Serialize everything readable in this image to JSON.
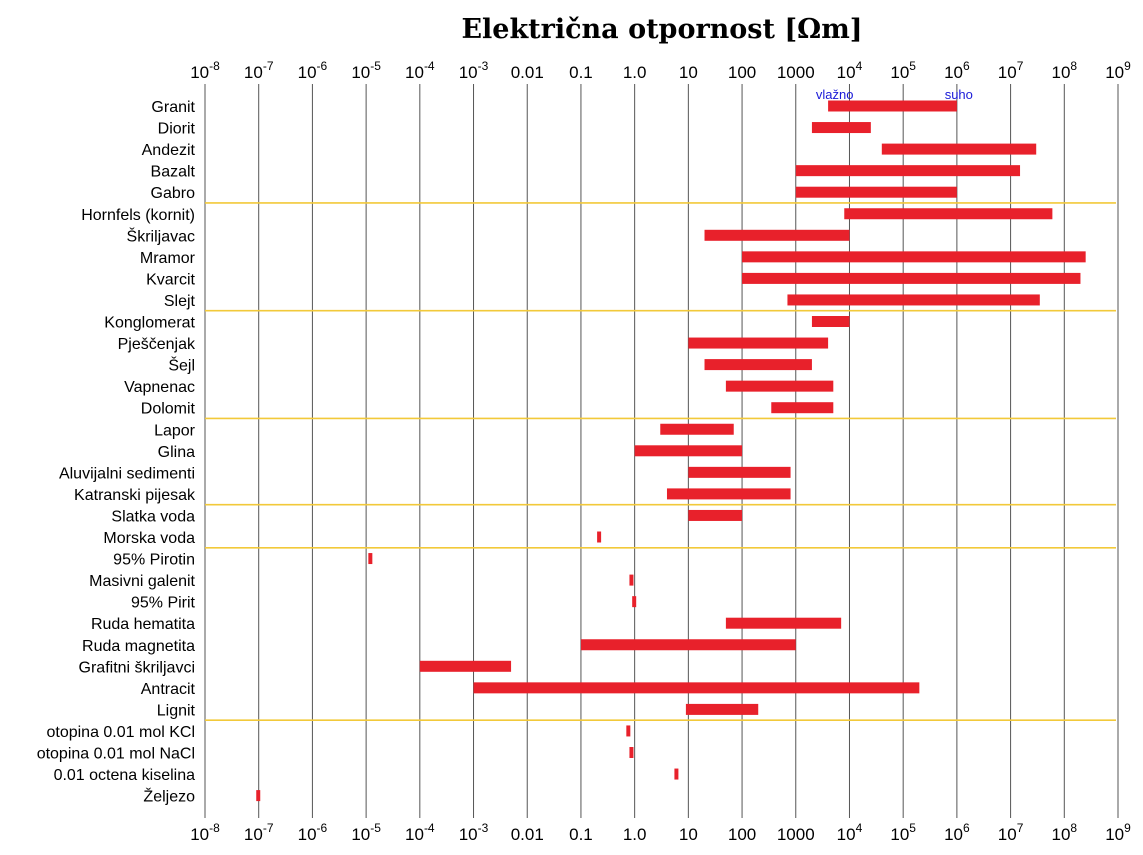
{
  "chart_data": {
    "type": "bar",
    "orientation": "horizontal-range",
    "title": "Električna otpornost [Ωm]",
    "x_scale": "log",
    "xlim": [
      1e-08,
      1000000000.0
    ],
    "x_ticks": [
      {
        "value": 1e-08,
        "base": "10",
        "exp": "-8"
      },
      {
        "value": 1e-07,
        "base": "10",
        "exp": "-7"
      },
      {
        "value": 1e-06,
        "base": "10",
        "exp": "-6"
      },
      {
        "value": 1e-05,
        "base": "10",
        "exp": "-5"
      },
      {
        "value": 0.0001,
        "base": "10",
        "exp": "-4"
      },
      {
        "value": 0.001,
        "base": "10",
        "exp": "-3"
      },
      {
        "value": 0.01,
        "base": "0.01",
        "exp": ""
      },
      {
        "value": 0.1,
        "base": "0.1",
        "exp": ""
      },
      {
        "value": 1,
        "base": "1.0",
        "exp": ""
      },
      {
        "value": 10,
        "base": "10",
        "exp": ""
      },
      {
        "value": 100,
        "base": "100",
        "exp": ""
      },
      {
        "value": 1000,
        "base": "1000",
        "exp": ""
      },
      {
        "value": 10000.0,
        "base": "10",
        "exp": "4"
      },
      {
        "value": 100000.0,
        "base": "10",
        "exp": "5"
      },
      {
        "value": 1000000.0,
        "base": "10",
        "exp": "6"
      },
      {
        "value": 10000000.0,
        "base": "10",
        "exp": "7"
      },
      {
        "value": 100000000.0,
        "base": "10",
        "exp": "8"
      },
      {
        "value": 1000000000.0,
        "base": "10",
        "exp": "9"
      }
    ],
    "grid": "vertical",
    "bar_color": "#e8212b",
    "separator_color": "#f2c93a",
    "note_color": "#1a1ad8",
    "notes": [
      {
        "text": "vlažno",
        "value": 2000,
        "row": 0
      },
      {
        "text": "suho",
        "value": 500000,
        "row": 0
      }
    ],
    "categories": [
      "Granit",
      "Diorit",
      "Andezit",
      "Bazalt",
      "Gabro",
      "Hornfels (kornit)",
      "Škriljavac",
      "Mramor",
      "Kvarcit",
      "Slejt",
      "Konglomerat",
      "Pješčenjak",
      "Šejl",
      "Vapnenac",
      "Dolomit",
      "Lapor",
      "Glina",
      "Aluvijalni sedimenti",
      "Katranski pijesak",
      "Slatka voda",
      "Morska voda",
      "95% Pirotin",
      "Masivni galenit",
      "95% Pirit",
      "Ruda hematita",
      "Ruda magnetita",
      "Grafitni škriljavci",
      "Antracit",
      "Lignit",
      "otopina 0.01 mol KCl",
      "otopina 0.01 mol NaCl",
      "0.01 octena kiselina",
      "Željezo"
    ],
    "separators_after": [
      4,
      9,
      14,
      18,
      20,
      28
    ],
    "ranges": [
      [
        4000,
        1000000
      ],
      [
        2000,
        25000
      ],
      [
        40000,
        30000000
      ],
      [
        1000,
        15000000
      ],
      [
        1000,
        1000000
      ],
      [
        8000,
        60000000
      ],
      [
        20,
        10000
      ],
      [
        100,
        250000000
      ],
      [
        100,
        200000000
      ],
      [
        700,
        35000000
      ],
      [
        2000,
        10000
      ],
      [
        10,
        4000
      ],
      [
        20,
        2000
      ],
      [
        50,
        5000
      ],
      [
        350,
        5000
      ],
      [
        3,
        70
      ],
      [
        1,
        100
      ],
      [
        10,
        800
      ],
      [
        4,
        800
      ],
      [
        10,
        100
      ],
      [
        0.2,
        0.21
      ],
      [
        1.1e-05,
        1.2e-05
      ],
      [
        0.8,
        0.85
      ],
      [
        0.9,
        0.95
      ],
      [
        50,
        7000
      ],
      [
        0.1,
        1000
      ],
      [
        0.0001,
        0.005
      ],
      [
        0.001,
        200000
      ],
      [
        9,
        200
      ],
      [
        0.7,
        0.75
      ],
      [
        0.8,
        0.85
      ],
      [
        5.5,
        6.5
      ],
      [
        9e-08,
        1e-07
      ]
    ]
  }
}
